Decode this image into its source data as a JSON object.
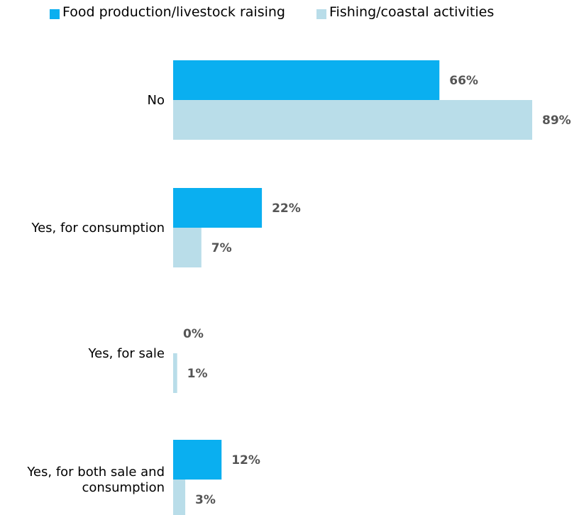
{
  "chart_data": {
    "type": "bar",
    "orientation": "horizontal",
    "categories": [
      [
        "No"
      ],
      [
        "Yes, for consumption"
      ],
      [
        "Yes, for sale"
      ],
      [
        "Yes, for both sale and",
        "consumption"
      ]
    ],
    "series": [
      {
        "name": "Food production/livestock raising",
        "color": "#0aaff0",
        "values": [
          66,
          22,
          0,
          12
        ],
        "labels": [
          "66%",
          "22%",
          "0%",
          "12%"
        ]
      },
      {
        "name": "Fishing/coastal activities",
        "color": "#b9dde9",
        "values": [
          89,
          7,
          1,
          3
        ],
        "labels": [
          "89%",
          "7%",
          "1%",
          "3%"
        ]
      }
    ],
    "xlim": [
      0,
      89
    ],
    "unit": "%",
    "legend_position": "top",
    "grid": false
  }
}
